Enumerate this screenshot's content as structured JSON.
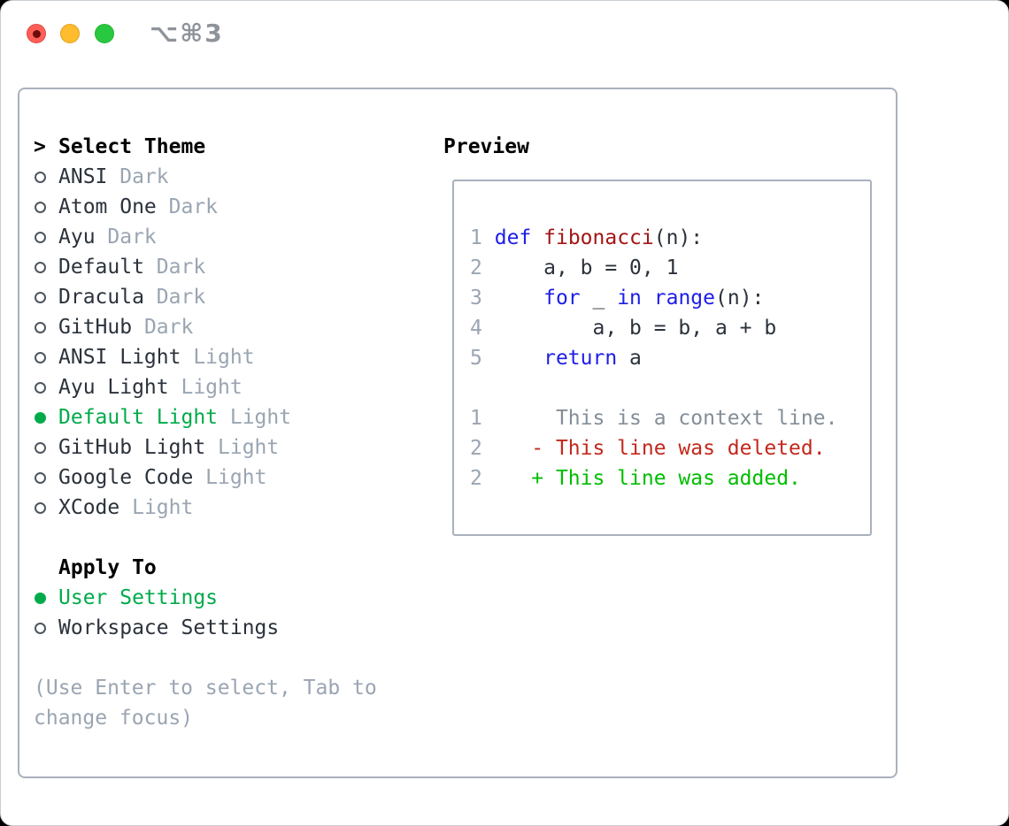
{
  "window": {
    "title": "⌥⌘3",
    "traffic_lights": [
      "close",
      "minimize",
      "zoom"
    ]
  },
  "sidebar": {
    "header": {
      "marker": ">",
      "label": "Select Theme"
    },
    "themes": [
      {
        "name": "ANSI",
        "tag": "Dark",
        "selected": false
      },
      {
        "name": "Atom One",
        "tag": "Dark",
        "selected": false
      },
      {
        "name": "Ayu",
        "tag": "Dark",
        "selected": false
      },
      {
        "name": "Default",
        "tag": "Dark",
        "selected": false
      },
      {
        "name": "Dracula",
        "tag": "Dark",
        "selected": false
      },
      {
        "name": "GitHub",
        "tag": "Dark",
        "selected": false
      },
      {
        "name": "ANSI Light",
        "tag": "Light",
        "selected": false
      },
      {
        "name": "Ayu Light",
        "tag": "Light",
        "selected": false
      },
      {
        "name": "Default Light",
        "tag": "Light",
        "selected": true
      },
      {
        "name": "GitHub Light",
        "tag": "Light",
        "selected": false
      },
      {
        "name": "Google Code",
        "tag": "Light",
        "selected": false
      },
      {
        "name": "XCode",
        "tag": "Light",
        "selected": false
      }
    ],
    "apply_to": {
      "header": "Apply To",
      "options": [
        {
          "name": "User Settings",
          "selected": true
        },
        {
          "name": "Workspace Settings",
          "selected": false
        }
      ]
    },
    "hint": [
      "(Use Enter to select, Tab to",
      "change focus)"
    ]
  },
  "preview": {
    "header": "Preview",
    "lines": [
      {
        "no": "1",
        "tokens": [
          [
            "code",
            " "
          ],
          [
            "kw",
            "def"
          ],
          [
            "code",
            " "
          ],
          [
            "fn",
            "fibonacci"
          ],
          [
            "code",
            "(n):"
          ]
        ]
      },
      {
        "no": "2",
        "tokens": [
          [
            "code",
            "     a, b = 0, 1"
          ]
        ]
      },
      {
        "no": "3",
        "tokens": [
          [
            "code",
            "     "
          ],
          [
            "kw",
            "for"
          ],
          [
            "code",
            " _ "
          ],
          [
            "kw",
            "in"
          ],
          [
            "code",
            " "
          ],
          [
            "kw",
            "range"
          ],
          [
            "code",
            "(n):"
          ]
        ]
      },
      {
        "no": "4",
        "tokens": [
          [
            "code",
            "         a, b = b, a + b"
          ]
        ]
      },
      {
        "no": "5",
        "tokens": [
          [
            "code",
            "     "
          ],
          [
            "kw",
            "return"
          ],
          [
            "code",
            " a"
          ]
        ]
      },
      {
        "no": "",
        "tokens": []
      },
      {
        "no": "1",
        "tokens": [
          [
            "ctx",
            "      This is a context line."
          ]
        ]
      },
      {
        "no": "2",
        "tokens": [
          [
            "del",
            "    - This line was deleted."
          ]
        ]
      },
      {
        "no": "2",
        "tokens": [
          [
            "add",
            "    + This line was added."
          ]
        ]
      }
    ]
  },
  "colors": {
    "accent_green": "#00ab4a",
    "keyword_blue": "#1d1de8",
    "function_red": "#a31515",
    "deleted_red": "#c3281c",
    "added_green": "#00bd00",
    "muted_gray": "#9aa5b2",
    "context_gray": "#848e98",
    "text_dark": "#2b323b",
    "border_gray": "#a9b1bc",
    "traffic_red": "#ff5f57",
    "traffic_yellow": "#febc2e",
    "traffic_green": "#28c840",
    "title_gray": "#8e939b"
  }
}
